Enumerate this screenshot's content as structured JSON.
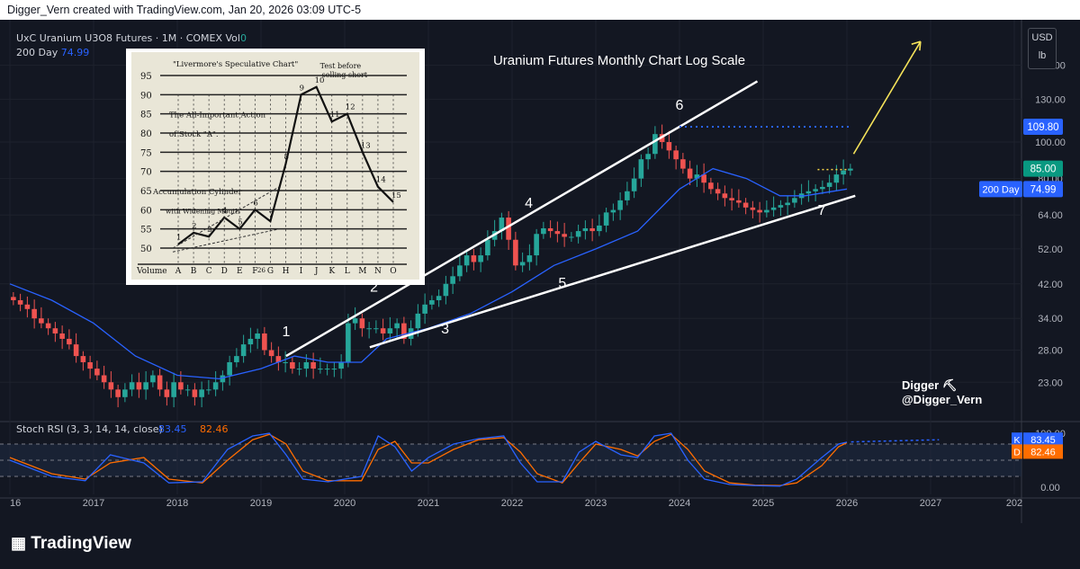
{
  "topbar_text": "Digger_Vern created with TradingView.com, Jan 20, 2026 03:09 UTC-5",
  "symbol_line": "UxC Uranium U3O8 Futures · 1M · COMEX",
  "vol_label": "Vol",
  "vol_value": "0",
  "ma_label": "200 Day",
  "ma_value": "74.99",
  "currency": "USD",
  "unit": "lb",
  "footer_brand": "TradingView",
  "chart_data": {
    "type": "candlestick",
    "title": "Uranium Futures Monthly Chart Log Scale",
    "scale": "log",
    "ylim": [
      19,
      200
    ],
    "price_ticks": [
      160.0,
      130.0,
      100.0,
      80.0,
      64.0,
      52.0,
      42.0,
      34.0,
      28.0,
      23.0
    ],
    "x_ticks": [
      "16",
      "2017",
      "2018",
      "2019",
      "2020",
      "2021",
      "2022",
      "2023",
      "2024",
      "2025",
      "2026",
      "2027",
      "202"
    ],
    "price_labels": [
      {
        "value": "109.80",
        "style": "blue"
      },
      {
        "value": "85.00",
        "style": "green"
      },
      {
        "value": "74.99",
        "name": "200 Day",
        "style": "blue"
      }
    ],
    "ma_points": [
      [
        2016.0,
        42
      ],
      [
        2016.5,
        38
      ],
      [
        2017.0,
        33
      ],
      [
        2017.5,
        27
      ],
      [
        2018.0,
        24
      ],
      [
        2018.5,
        23.5
      ],
      [
        2019.0,
        25
      ],
      [
        2019.4,
        27
      ],
      [
        2019.8,
        26
      ],
      [
        2020.2,
        26
      ],
      [
        2020.5,
        30
      ],
      [
        2021.0,
        32
      ],
      [
        2021.5,
        35
      ],
      [
        2022.0,
        40
      ],
      [
        2022.5,
        47
      ],
      [
        2023.0,
        52
      ],
      [
        2023.5,
        58
      ],
      [
        2024.0,
        75
      ],
      [
        2024.4,
        85
      ],
      [
        2024.8,
        80
      ],
      [
        2025.2,
        72
      ],
      [
        2025.5,
        72
      ],
      [
        2026.0,
        75
      ]
    ],
    "candles_monthly_close": [
      38,
      37,
      36,
      34,
      33,
      32,
      31,
      30,
      29,
      27,
      26,
      25,
      24,
      23,
      22,
      21,
      22,
      23,
      22,
      23,
      24,
      22,
      21,
      23,
      22,
      22,
      21,
      22,
      22,
      23,
      24,
      26,
      27,
      29,
      30,
      31,
      28,
      27,
      26,
      26,
      25,
      25,
      26,
      25,
      25,
      25,
      25,
      26,
      33,
      34,
      32,
      32,
      32,
      31,
      32,
      33,
      30,
      32,
      35,
      37,
      38,
      39,
      42,
      44,
      47,
      50,
      48,
      50,
      55,
      58,
      63,
      55,
      47,
      48,
      50,
      57,
      59,
      58,
      57,
      56,
      56,
      58,
      59,
      58,
      60,
      65,
      66,
      70,
      74,
      80,
      90,
      93,
      105,
      100,
      95,
      90,
      85,
      80,
      82,
      78,
      75,
      73,
      71,
      70,
      69,
      67,
      66,
      65,
      66,
      67,
      68,
      69,
      71,
      73,
      74,
      75,
      76,
      78,
      82,
      84,
      85
    ],
    "annotations": [
      "1",
      "2",
      "3",
      "4",
      "5",
      "6",
      "7"
    ],
    "stoch_rsi": {
      "label": "Stoch RSI (3, 3, 14, 14, close)",
      "k": "83.45",
      "d": "82.46",
      "ticks": [
        "100.00",
        "0.00"
      ],
      "k_points": [
        [
          2016.0,
          50
        ],
        [
          2016.5,
          20
        ],
        [
          2016.9,
          12
        ],
        [
          2017.2,
          60
        ],
        [
          2017.6,
          45
        ],
        [
          2017.9,
          8
        ],
        [
          2018.3,
          10
        ],
        [
          2018.6,
          70
        ],
        [
          2018.9,
          95
        ],
        [
          2019.1,
          100
        ],
        [
          2019.3,
          60
        ],
        [
          2019.5,
          15
        ],
        [
          2019.8,
          10
        ],
        [
          2020.2,
          20
        ],
        [
          2020.4,
          95
        ],
        [
          2020.6,
          75
        ],
        [
          2020.8,
          30
        ],
        [
          2021.0,
          55
        ],
        [
          2021.3,
          80
        ],
        [
          2021.6,
          90
        ],
        [
          2021.9,
          95
        ],
        [
          2022.1,
          45
        ],
        [
          2022.3,
          10
        ],
        [
          2022.6,
          10
        ],
        [
          2022.8,
          65
        ],
        [
          2023.0,
          85
        ],
        [
          2023.3,
          60
        ],
        [
          2023.5,
          55
        ],
        [
          2023.7,
          95
        ],
        [
          2023.9,
          100
        ],
        [
          2024.1,
          50
        ],
        [
          2024.3,
          15
        ],
        [
          2024.6,
          5
        ],
        [
          2024.9,
          3
        ],
        [
          2025.2,
          2
        ],
        [
          2025.4,
          15
        ],
        [
          2025.7,
          55
        ],
        [
          2025.9,
          80
        ],
        [
          2026.0,
          83.45
        ]
      ],
      "d_points": [
        [
          2016.0,
          55
        ],
        [
          2016.5,
          25
        ],
        [
          2016.9,
          15
        ],
        [
          2017.2,
          45
        ],
        [
          2017.6,
          55
        ],
        [
          2017.9,
          15
        ],
        [
          2018.3,
          8
        ],
        [
          2018.6,
          50
        ],
        [
          2018.9,
          88
        ],
        [
          2019.1,
          98
        ],
        [
          2019.3,
          80
        ],
        [
          2019.5,
          30
        ],
        [
          2019.8,
          12
        ],
        [
          2020.2,
          12
        ],
        [
          2020.4,
          70
        ],
        [
          2020.6,
          85
        ],
        [
          2020.8,
          45
        ],
        [
          2021.0,
          45
        ],
        [
          2021.3,
          70
        ],
        [
          2021.6,
          88
        ],
        [
          2021.9,
          92
        ],
        [
          2022.1,
          65
        ],
        [
          2022.3,
          25
        ],
        [
          2022.6,
          8
        ],
        [
          2022.8,
          45
        ],
        [
          2023.0,
          80
        ],
        [
          2023.3,
          70
        ],
        [
          2023.5,
          58
        ],
        [
          2023.7,
          85
        ],
        [
          2023.9,
          98
        ],
        [
          2024.1,
          70
        ],
        [
          2024.3,
          30
        ],
        [
          2024.6,
          8
        ],
        [
          2024.9,
          4
        ],
        [
          2025.2,
          3
        ],
        [
          2025.4,
          8
        ],
        [
          2025.7,
          40
        ],
        [
          2025.9,
          75
        ],
        [
          2026.0,
          82.46
        ]
      ]
    }
  },
  "inset": {
    "title": "\"Livermore's Speculative Chart\"",
    "caption1": "The All-Important Action",
    "caption2": "of Stock \"A\".",
    "caption3": "Accumulation Cylinder",
    "caption4": "with Widening Mouth",
    "caption5": "Test before selling short",
    "y_labels": [
      "95",
      "90",
      "85",
      "80",
      "75",
      "70",
      "65",
      "60",
      "55",
      "50"
    ],
    "x_labels": [
      "Volume",
      "A",
      "B",
      "C",
      "D",
      "E",
      "F",
      "G",
      "H",
      "I",
      "J",
      "K",
      "L",
      "M",
      "N",
      "O"
    ],
    "point_labels": [
      "1",
      "2",
      "3",
      "4",
      "5",
      "6",
      "7",
      "8",
      "9",
      "10",
      "11",
      "12",
      "13",
      "14",
      "15"
    ],
    "page_num": "26"
  },
  "watermark": {
    "line1": "Digger",
    "line2": "@Digger_Vern"
  }
}
